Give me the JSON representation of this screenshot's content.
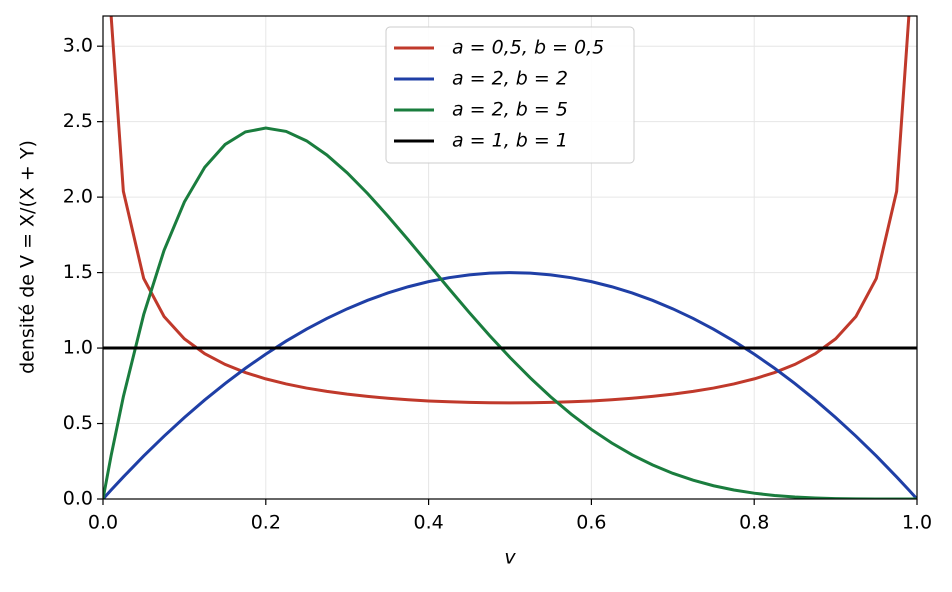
{
  "chart_data": {
    "type": "line",
    "xlabel": "v",
    "ylabel": "densité de V = X/(X + Y)",
    "x": [
      0,
      0.01,
      0.025,
      0.05,
      0.075,
      0.1,
      0.125,
      0.15,
      0.175,
      0.2,
      0.225,
      0.25,
      0.275,
      0.3,
      0.325,
      0.35,
      0.375,
      0.4,
      0.425,
      0.45,
      0.475,
      0.5,
      0.525,
      0.55,
      0.575,
      0.6,
      0.625,
      0.65,
      0.675,
      0.7,
      0.725,
      0.75,
      0.775,
      0.8,
      0.825,
      0.85,
      0.875,
      0.9,
      0.925,
      0.95,
      0.975,
      0.99,
      1
    ],
    "series": [
      {
        "name": "a = 0,5,  b = 0,5",
        "color": "#c0392b",
        "values": [
          null,
          3.199,
          2.039,
          1.461,
          1.209,
          1.061,
          0.9625,
          0.8915,
          0.8377,
          0.7958,
          0.7623,
          0.7351,
          0.7129,
          0.6946,
          0.6796,
          0.6674,
          0.6575,
          0.6497,
          0.6439,
          0.6398,
          0.6374,
          0.6366,
          0.6374,
          0.6398,
          0.6439,
          0.6497,
          0.6575,
          0.6674,
          0.6796,
          0.6946,
          0.7129,
          0.7351,
          0.7623,
          0.7958,
          0.8377,
          0.8915,
          0.9625,
          1.061,
          1.209,
          1.461,
          2.039,
          3.199,
          null
        ]
      },
      {
        "name": "a = 2,  b = 2",
        "color": "#1f3fa6",
        "values": [
          0,
          0.0594,
          0.14625,
          0.285,
          0.41625,
          0.54,
          0.65625,
          0.765,
          0.86625,
          0.96,
          1.04625,
          1.125,
          1.19625,
          1.26,
          1.31625,
          1.365,
          1.40625,
          1.44,
          1.46625,
          1.485,
          1.49625,
          1.5,
          1.49625,
          1.485,
          1.46625,
          1.44,
          1.40625,
          1.365,
          1.31625,
          1.26,
          1.19625,
          1.125,
          1.04625,
          0.96,
          0.86625,
          0.765,
          0.65625,
          0.54,
          0.41625,
          0.285,
          0.14625,
          0.0594,
          0
        ]
      },
      {
        "name": "a = 2,  b = 5",
        "color": "#1a7d3e",
        "values": [
          0,
          0.2882,
          0.6778,
          1.2218,
          1.6472,
          1.9683,
          2.1982,
          2.349,
          2.4321,
          2.4576,
          2.4351,
          2.373,
          2.2793,
          2.1609,
          2.024,
          1.8743,
          1.7166,
          1.5552,
          1.3938,
          1.2353,
          1.0826,
          0.9375,
          0.8018,
          0.6766,
          0.5628,
          0.4608,
          0.3708,
          0.2926,
          0.2259,
          0.1701,
          0.1244,
          0.0879,
          0.0596,
          0.0384,
          0.0232,
          0.0129,
          0.0064,
          0.0027,
          0.0009,
          0.0002,
          0,
          0,
          0
        ]
      },
      {
        "name": "a = 1,  b = 1",
        "color": "#000000",
        "values": [
          1,
          1,
          1,
          1,
          1,
          1,
          1,
          1,
          1,
          1,
          1,
          1,
          1,
          1,
          1,
          1,
          1,
          1,
          1,
          1,
          1,
          1,
          1,
          1,
          1,
          1,
          1,
          1,
          1,
          1,
          1,
          1,
          1,
          1,
          1,
          1,
          1,
          1,
          1,
          1,
          1,
          1,
          1
        ]
      }
    ],
    "xlim": [
      0,
      1
    ],
    "ylim": [
      0,
      3.2
    ],
    "xticks": [
      {
        "value": 0,
        "label": "0.0"
      },
      {
        "value": 0.2,
        "label": "0.2"
      },
      {
        "value": 0.4,
        "label": "0.4"
      },
      {
        "value": 0.6,
        "label": "0.6"
      },
      {
        "value": 0.8,
        "label": "0.8"
      },
      {
        "value": 1,
        "label": "1.0"
      }
    ],
    "yticks": [
      {
        "value": 0,
        "label": "0.0"
      },
      {
        "value": 0.5,
        "label": "0.5"
      },
      {
        "value": 1,
        "label": "1.0"
      },
      {
        "value": 1.5,
        "label": "1.5"
      },
      {
        "value": 2,
        "label": "2.0"
      },
      {
        "value": 2.5,
        "label": "2.5"
      },
      {
        "value": 3,
        "label": "3.0"
      }
    ],
    "grid": true,
    "legend": "upper center"
  }
}
